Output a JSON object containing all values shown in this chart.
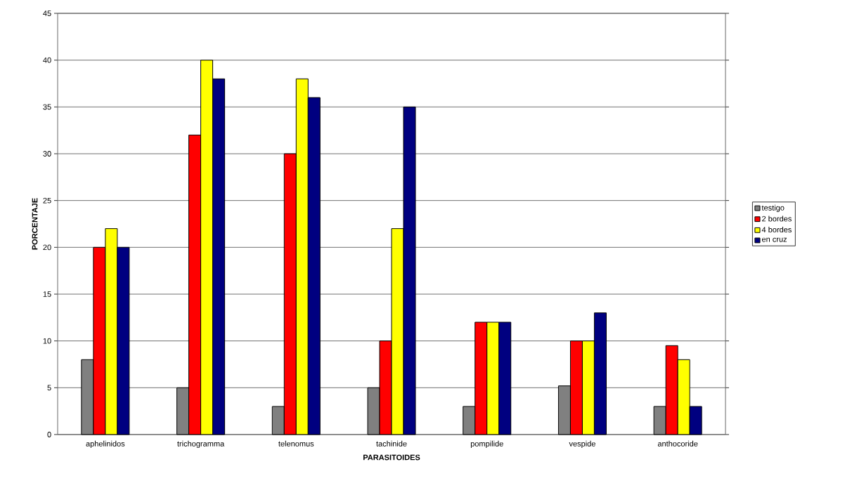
{
  "chart_data": {
    "type": "bar",
    "xlabel": "PARASITOIDES",
    "ylabel": "PORCENTAJE",
    "categories": [
      "aphelinidos",
      "trichogramma",
      "telenomus",
      "tachinide",
      "pompilide",
      "vespide",
      "anthocoride"
    ],
    "series": [
      {
        "name": "testigo",
        "color": "#808080",
        "values": [
          8,
          5,
          3,
          5,
          3,
          5.2,
          3
        ]
      },
      {
        "name": "2 bordes",
        "color": "#ff0000",
        "values": [
          20,
          32,
          30,
          10,
          12,
          10,
          9.5
        ]
      },
      {
        "name": "4 bordes",
        "color": "#ffff00",
        "values": [
          22,
          40,
          38,
          22,
          12,
          10,
          8
        ]
      },
      {
        "name": "en cruz",
        "color": "#000080",
        "values": [
          20,
          38,
          36,
          35,
          12,
          13,
          3
        ]
      }
    ],
    "ylim": [
      0,
      45
    ],
    "yticks": [
      0,
      5,
      10,
      15,
      20,
      25,
      30,
      35,
      40,
      45
    ],
    "grid": "y",
    "legend": "right"
  }
}
